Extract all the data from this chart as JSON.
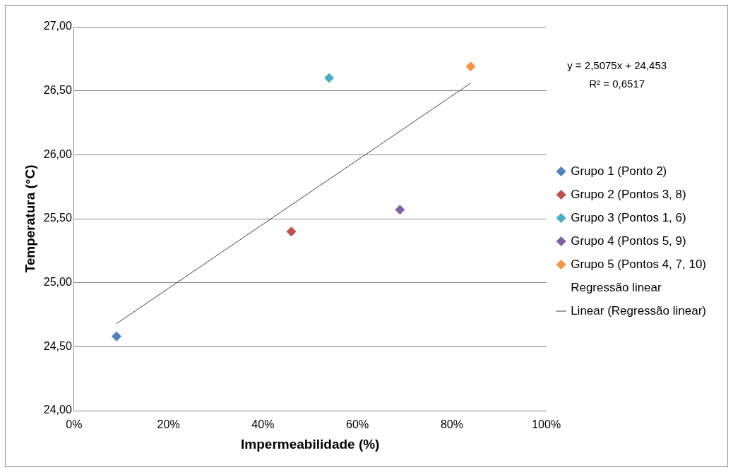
{
  "chart_data": {
    "type": "scatter",
    "xlabel": "Impermeabilidade (%)",
    "ylabel": "Temperatura (°C)",
    "xlim": [
      0,
      100
    ],
    "xticks": [
      {
        "value": 0,
        "label": "0%"
      },
      {
        "value": 20,
        "label": "20%"
      },
      {
        "value": 40,
        "label": "40%"
      },
      {
        "value": 60,
        "label": "60%"
      },
      {
        "value": 80,
        "label": "80%"
      },
      {
        "value": 100,
        "label": "100%"
      }
    ],
    "ylim": [
      24,
      27
    ],
    "yticks": [
      {
        "value": 24,
        "label": "24,00"
      },
      {
        "value": 24.5,
        "label": "24,50"
      },
      {
        "value": 25,
        "label": "25,00"
      },
      {
        "value": 25.5,
        "label": "25,50"
      },
      {
        "value": 26,
        "label": "26,00"
      },
      {
        "value": 26.5,
        "label": "26,50"
      },
      {
        "value": 27,
        "label": "27,00"
      }
    ],
    "grid": "y",
    "legend": "right",
    "marker": "diamond",
    "series": [
      {
        "name": "Grupo 1 (Ponto 2)",
        "color": "#4f81bd",
        "x": [
          9
        ],
        "values": [
          24.58
        ]
      },
      {
        "name": "Grupo 2 (Pontos 3, 8)",
        "color": "#c0504d",
        "x": [
          46
        ],
        "values": [
          25.4
        ]
      },
      {
        "name": "Grupo 3 (Pontos 1, 6)",
        "color": "#4bacc6",
        "x": [
          54
        ],
        "values": [
          26.6
        ]
      },
      {
        "name": "Grupo 4 (Pontos 5, 9)",
        "color": "#8064a2",
        "x": [
          69
        ],
        "values": [
          25.57
        ]
      },
      {
        "name": "Grupo 5 (Pontos 4, 7, 10)",
        "color": "#f79646",
        "x": [
          84
        ],
        "values": [
          26.69
        ]
      },
      {
        "name": "Regressão linear",
        "marker": "none"
      },
      {
        "name": "Linear (Regressão linear)",
        "type": "line",
        "color": "#404040",
        "marker": "none",
        "line_style": "solid",
        "x": [
          9,
          84
        ],
        "values": [
          24.68,
          26.56
        ]
      }
    ],
    "annotations": [
      "y = 2,5075x + 24,453",
      "R² = 0,6517"
    ]
  }
}
